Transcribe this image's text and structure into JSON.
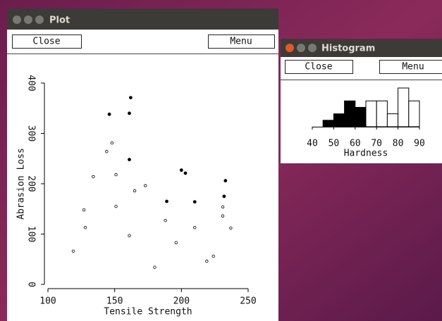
{
  "windows": [
    {
      "title": "Plot",
      "buttons": [
        "Close",
        "Menu"
      ]
    },
    {
      "title": "Histogram",
      "buttons": [
        "Close",
        "Menu"
      ]
    }
  ],
  "chart_data": [
    {
      "type": "scatter",
      "x_label": "Tensile Strength",
      "y_label": "Abrasion Loss",
      "xlim": [
        100,
        250
      ],
      "xticks": [
        100,
        150,
        200,
        250
      ],
      "ylim": [
        0,
        400
      ],
      "yticks": [
        0,
        100,
        200,
        300,
        400
      ],
      "series": [
        {
          "color": "#000000",
          "filled": true,
          "x": [
            146,
            162,
            161,
            161,
            189,
            200,
            203,
            210,
            233,
            232
          ],
          "values": [
            338,
            371,
            340,
            248,
            165,
            227,
            221,
            164,
            206,
            175
          ]
        },
        {
          "color": "#000000",
          "filled": false,
          "x": [
            119,
            127,
            128,
            134,
            144,
            148,
            151,
            151,
            161,
            165,
            173,
            180,
            188,
            196,
            210,
            219,
            224,
            231,
            231,
            237
          ],
          "values": [
            66,
            148,
            113,
            214,
            264,
            281,
            218,
            155,
            97,
            186,
            196,
            34,
            127,
            83,
            113,
            46,
            56,
            154,
            136,
            112
          ]
        }
      ]
    },
    {
      "type": "histogram",
      "x_label": "Hardness",
      "xlim": [
        40,
        90
      ],
      "xticks": [
        40,
        50,
        60,
        70,
        80,
        90
      ],
      "ylim": [
        0,
        6
      ],
      "bins": [
        45,
        50,
        55,
        60,
        65,
        70,
        75,
        80,
        85,
        90
      ],
      "values": [
        1,
        2,
        4,
        3,
        4,
        4,
        2,
        6,
        4
      ],
      "colors": [
        "#000000",
        "#000000",
        "#000000",
        "#000000",
        "#ffffff",
        "#ffffff",
        "#ffffff",
        "#ffffff",
        "#ffffff"
      ]
    }
  ]
}
